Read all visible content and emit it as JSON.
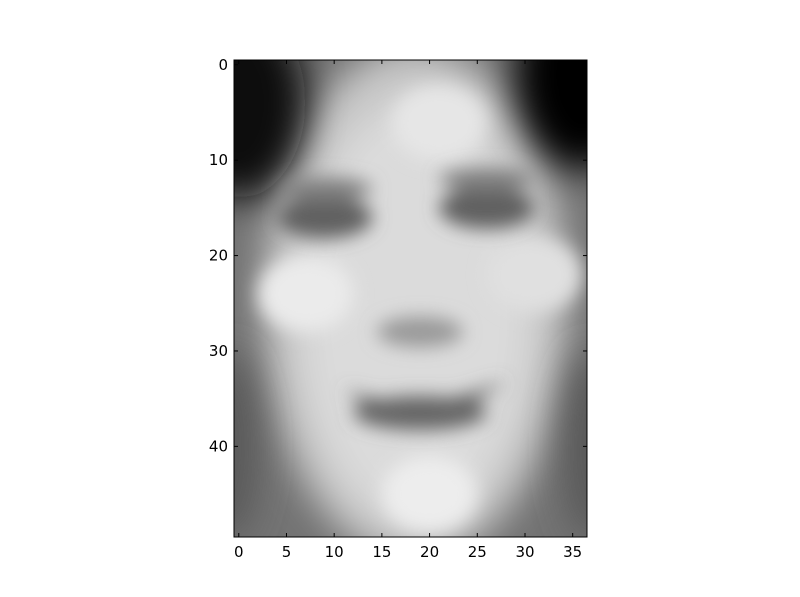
{
  "chart_data": {
    "type": "heatmap",
    "title": "",
    "xlabel": "",
    "ylabel": "",
    "colormap": "gray",
    "image_width": 37,
    "image_height": 50,
    "xlim": [
      -0.5,
      36.5
    ],
    "ylim": [
      49.5,
      -0.5
    ],
    "xticks": [
      0,
      5,
      10,
      15,
      20,
      25,
      30,
      35
    ],
    "xtick_labels": [
      "0",
      "5",
      "10",
      "15",
      "20",
      "25",
      "30",
      "35"
    ],
    "yticks": [
      0,
      10,
      20,
      30,
      40
    ],
    "ytick_labels": [
      "0",
      "10",
      "20",
      "30",
      "40"
    ],
    "grid": false,
    "features": {
      "dark_corners": [
        {
          "x": 0,
          "y": 4,
          "value": 0.03
        },
        {
          "x": 36,
          "y": 1,
          "value": 0.02
        }
      ],
      "eyes": [
        {
          "x": 9,
          "y": 16,
          "value": 0.38
        },
        {
          "x": 26,
          "y": 15,
          "value": 0.38
        }
      ],
      "bright_regions": [
        {
          "x": 21,
          "y": 6,
          "value": 0.9
        },
        {
          "x": 7,
          "y": 24,
          "value": 0.92
        },
        {
          "x": 31,
          "y": 22,
          "value": 0.88
        },
        {
          "x": 20,
          "y": 45,
          "value": 0.93
        }
      ],
      "mouth_center": {
        "x": 19,
        "y": 36,
        "value": 0.42
      },
      "nose_center": {
        "x": 19,
        "y": 28,
        "value": 0.6
      }
    }
  }
}
